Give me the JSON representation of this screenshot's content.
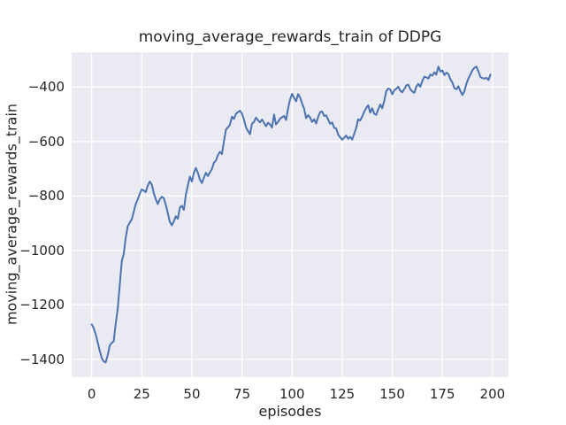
{
  "colors": {
    "figure_background": "#ffffff",
    "plot_background": "#eaeaf2",
    "gridline": "#ffffff",
    "line": "#4c72b0",
    "text": "#262626"
  },
  "chart_data": {
    "type": "line",
    "title": "moving_average_rewards_train of DDPG",
    "xlabel": "episodes",
    "ylabel": "moving_average_rewards_train",
    "style": "seaborn-darkgrid",
    "grid": true,
    "legend": false,
    "xlim": [
      -10,
      208
    ],
    "ylim": [
      -1466,
      -272
    ],
    "xticks": {
      "values": [
        0,
        25,
        50,
        75,
        100,
        125,
        150,
        175,
        200
      ],
      "labels": [
        "0",
        "25",
        "50",
        "75",
        "100",
        "125",
        "150",
        "175",
        "200"
      ]
    },
    "yticks": {
      "values": [
        -1400,
        -1200,
        -1000,
        -800,
        -600,
        -400
      ],
      "labels": [
        "−1400",
        "−1200",
        "−1000",
        "−800",
        "−600",
        "−400"
      ]
    },
    "series": [
      {
        "name": "moving_average_rewards_train",
        "color": "#4c72b0",
        "x_start": 0,
        "x_step": 1,
        "values": [
          -1272,
          -1285,
          -1308,
          -1338,
          -1368,
          -1395,
          -1408,
          -1412,
          -1385,
          -1350,
          -1340,
          -1334,
          -1268,
          -1215,
          -1128,
          -1040,
          -1013,
          -953,
          -912,
          -898,
          -886,
          -858,
          -830,
          -812,
          -793,
          -776,
          -780,
          -786,
          -762,
          -747,
          -758,
          -789,
          -812,
          -830,
          -812,
          -803,
          -808,
          -833,
          -864,
          -895,
          -908,
          -893,
          -875,
          -884,
          -843,
          -836,
          -851,
          -795,
          -762,
          -729,
          -747,
          -715,
          -697,
          -715,
          -740,
          -753,
          -733,
          -715,
          -727,
          -713,
          -701,
          -678,
          -670,
          -650,
          -638,
          -646,
          -600,
          -556,
          -548,
          -538,
          -509,
          -517,
          -498,
          -492,
          -487,
          -497,
          -520,
          -548,
          -562,
          -573,
          -535,
          -528,
          -512,
          -522,
          -530,
          -519,
          -531,
          -544,
          -531,
          -537,
          -549,
          -501,
          -537,
          -528,
          -516,
          -511,
          -506,
          -521,
          -480,
          -445,
          -425,
          -440,
          -452,
          -426,
          -438,
          -460,
          -480,
          -514,
          -503,
          -512,
          -528,
          -518,
          -534,
          -510,
          -492,
          -490,
          -506,
          -504,
          -520,
          -535,
          -530,
          -550,
          -552,
          -575,
          -585,
          -593,
          -586,
          -578,
          -590,
          -583,
          -593,
          -572,
          -550,
          -518,
          -523,
          -508,
          -491,
          -477,
          -467,
          -494,
          -478,
          -498,
          -502,
          -482,
          -464,
          -478,
          -450,
          -415,
          -405,
          -409,
          -427,
          -412,
          -406,
          -399,
          -413,
          -419,
          -407,
          -394,
          -391,
          -408,
          -416,
          -421,
          -398,
          -388,
          -399,
          -377,
          -362,
          -364,
          -369,
          -354,
          -358,
          -346,
          -354,
          -325,
          -343,
          -339,
          -356,
          -347,
          -352,
          -372,
          -384,
          -404,
          -408,
          -397,
          -415,
          -429,
          -415,
          -388,
          -368,
          -354,
          -338,
          -329,
          -325,
          -343,
          -363,
          -367,
          -369,
          -366,
          -374,
          -354
        ]
      }
    ]
  }
}
